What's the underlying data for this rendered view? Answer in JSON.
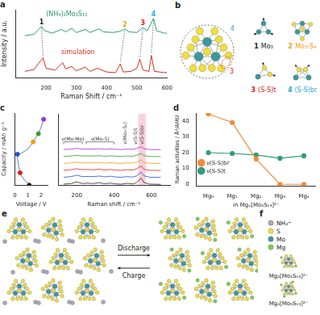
{
  "chart_data": [
    {
      "title": "a",
      "type": "line",
      "x_label": "Raman Shift / cm⁻¹",
      "y_label": "Intensity / a.u.",
      "xlim": [
        100,
        600
      ],
      "xticks": [
        200,
        300,
        400,
        500,
        600
      ],
      "ylim": [
        0,
        11
      ],
      "tick_labels": "x",
      "grid": false,
      "series": [
        {
          "name": "(NH₄)₂Mo₃S₁₃",
          "color": "#2a9d6f",
          "x": [
            130,
            160,
            185,
            195,
            220,
            250,
            265,
            285,
            300,
            330,
            345,
            375,
            390,
            420,
            445,
            460,
            475,
            500,
            520,
            535,
            555,
            565,
            590,
            600
          ],
          "values": [
            6.8,
            7.0,
            8.3,
            7.6,
            7.2,
            7.8,
            7.4,
            8.0,
            7.3,
            7.8,
            7.3,
            7.9,
            7.4,
            7.3,
            7.5,
            7.9,
            7.4,
            7.3,
            8.1,
            7.6,
            9.6,
            7.6,
            7.2,
            7.2
          ]
        },
        {
          "name": "simulation",
          "color": "#d62d20",
          "x": [
            130,
            160,
            180,
            190,
            200,
            230,
            255,
            265,
            285,
            300,
            330,
            345,
            370,
            400,
            430,
            445,
            455,
            480,
            500,
            510,
            520,
            540,
            548,
            558,
            590,
            600
          ],
          "values": [
            1.0,
            1.3,
            2.6,
            3.2,
            1.5,
            1.2,
            2.4,
            1.4,
            1.8,
            1.1,
            1.7,
            1.0,
            1.5,
            0.9,
            0.8,
            2.2,
            0.9,
            1.0,
            1.5,
            3.0,
            1.2,
            1.0,
            3.6,
            1.0,
            0.8,
            0.8
          ]
        }
      ],
      "peaks": [
        {
          "label": "1",
          "color": "#222222",
          "x_top": 185,
          "y_top": 8.3,
          "x_bottom": 190,
          "y_bottom": 3.2
        },
        {
          "label": "2",
          "color": "#f39c12",
          "x_top": 460,
          "y_top": 7.9,
          "x_bottom": 445,
          "y_bottom": 2.2
        },
        {
          "label": "3",
          "color": "#e0201b",
          "x_top": 520,
          "y_top": 8.1,
          "x_bottom": 510,
          "y_bottom": 3.0
        },
        {
          "label": "4",
          "color": "#29a8d8",
          "x_top": 555,
          "y_top": 9.6,
          "x_bottom": 548,
          "y_bottom": 3.6
        }
      ]
    },
    {
      "title": "c",
      "type": "scatter",
      "x_label": "Voltage / V",
      "y_label": "Capacity / mAh g⁻¹",
      "xlim": [
        0,
        2.5
      ],
      "xticks": [
        0,
        1,
        2
      ],
      "ylim": [
        0,
        700
      ],
      "yticks": [
        0,
        200,
        400,
        600
      ],
      "tick_labels": "x",
      "grid": false,
      "series": [
        {
          "type": "line",
          "color": "#5b7fbf",
          "x": [
            1.1,
            0.8,
            0.5,
            0.4,
            0.3,
            0.2,
            0.2,
            0.5,
            1.0,
            1.4,
            1.8,
            2.0,
            2.2
          ],
          "values": [
            0,
            40,
            90,
            120,
            180,
            260,
            300,
            310,
            350,
            420,
            500,
            560,
            640
          ]
        },
        {
          "type": "scatter",
          "marker": "circle",
          "colors": [
            "#222222",
            "#e0201b",
            "#1f4fd8",
            "#f39c12",
            "#2ca02c",
            "#9b30d9"
          ],
          "x": [
            1.1,
            0.4,
            0.2,
            1.4,
            1.8,
            2.2
          ],
          "values": [
            0,
            120,
            300,
            420,
            500,
            640
          ]
        }
      ]
    },
    {
      "type": "line",
      "x_label": "Raman shift / cm⁻¹",
      "xlim": [
        100,
        700
      ],
      "xticks": [
        200,
        400,
        600
      ],
      "ylim": [
        0,
        36
      ],
      "tick_labels": "x",
      "grid": false,
      "x": [
        130,
        170,
        200,
        230,
        260,
        290,
        320,
        350,
        380,
        410,
        440,
        470,
        500,
        520,
        545,
        560,
        590,
        650
      ],
      "series": [
        {
          "color": "#222222",
          "values": [
            0.5,
            0.8,
            1.6,
            0.8,
            1.0,
            0.8,
            1.2,
            0.7,
            1.0,
            0.6,
            0.5,
            0.9,
            0.6,
            1.2,
            3.6,
            1.3,
            0.5,
            0.4
          ]
        },
        {
          "color": "#1f4fd8",
          "values": [
            4.0,
            4.3,
            5.0,
            4.3,
            4.4,
            4.3,
            4.6,
            4.2,
            4.5,
            4.1,
            4.0,
            4.3,
            4.1,
            4.6,
            6.6,
            4.7,
            4.0,
            3.9
          ]
        },
        {
          "color": "#e0201b",
          "values": [
            7.5,
            7.8,
            8.3,
            7.8,
            7.9,
            7.7,
            8.1,
            7.6,
            7.9,
            7.6,
            7.5,
            7.8,
            7.6,
            8.2,
            9.7,
            8.0,
            7.5,
            7.4
          ]
        },
        {
          "color": "#f39c12",
          "values": [
            11.0,
            11.2,
            11.6,
            11.2,
            11.3,
            11.2,
            11.4,
            11.1,
            11.3,
            11.1,
            11.0,
            11.2,
            11.1,
            11.6,
            12.7,
            11.5,
            11.0,
            10.9
          ]
        },
        {
          "color": "#2ca02c",
          "values": [
            14.5,
            14.7,
            15.1,
            14.7,
            14.8,
            14.7,
            14.9,
            14.6,
            14.8,
            14.6,
            14.5,
            14.7,
            14.6,
            15.1,
            15.9,
            14.9,
            14.5,
            14.4
          ]
        },
        {
          "color": "#9b30d9",
          "values": [
            18.0,
            18.2,
            18.6,
            18.2,
            18.3,
            18.2,
            18.4,
            18.1,
            18.3,
            18.1,
            18.0,
            18.2,
            18.1,
            18.5,
            19.4,
            18.4,
            18.0,
            17.9
          ]
        }
      ],
      "bands": [
        {
          "label": "ν(Mo-Mo)",
          "x": [
            130,
            230
          ]
        },
        {
          "label": "ν(Mo-S)",
          "x": [
            250,
            400
          ]
        },
        {
          "label": "ν(Mo₃-S₄)",
          "x": 460
        },
        {
          "label": "ν(S-S)t",
          "x": 515
        },
        {
          "label": "ν(S-S)br",
          "x": 550
        }
      ],
      "highlight": [
        530,
        570
      ]
    },
    {
      "title": "d",
      "type": "line",
      "x_label": "in Mgₓ[Mo₃S₁₃]²⁻",
      "y_label": "Raman activities / Å⁴/AMU",
      "categories": [
        "Mg₀",
        "Mg₁",
        "Mg₂",
        "Mg₃",
        "Mg₄"
      ],
      "ylim": [
        -1,
        45
      ],
      "yticks": [
        0,
        10,
        20,
        30,
        40
      ],
      "legend": "top-right",
      "grid": false,
      "marker": "circle",
      "series": [
        {
          "name": "ν(S-S)br",
          "color": "#f28c38",
          "values": [
            44.5,
            39,
            16,
            0,
            0
          ]
        },
        {
          "name": "ν(S-S)t",
          "color": "#2e9e7e",
          "values": [
            20,
            19.5,
            18.5,
            16.5,
            18
          ]
        }
      ]
    }
  ],
  "diagrams": {
    "b": {
      "title": "b",
      "modes": [
        {
          "number": "1",
          "label": "Mo₃",
          "color": "#222222"
        },
        {
          "number": "2",
          "label": "Mo₃-S₄",
          "color": "#f39c12"
        },
        {
          "number": "3",
          "label": "(S-S)t",
          "color": "#e0201b"
        },
        {
          "number": "4",
          "label": "(S-S)br",
          "color": "#29a8d8"
        }
      ]
    },
    "e": {
      "title": "e",
      "forward": "Discharge",
      "backward": "Charge"
    },
    "f": {
      "title": "f",
      "species": [
        {
          "label": "NH₄⁺",
          "color": "#a9a9b8"
        },
        {
          "label": "S",
          "color": "#f2de3a"
        },
        {
          "label": "Mo",
          "color": "#3a9a9c"
        },
        {
          "label": "Mg",
          "color": "#7ccf5a"
        }
      ],
      "clusters": [
        {
          "label": "Mg₂[Mo₃S₁₃]²⁻",
          "mg": 2
        },
        {
          "label": "Mg₄[Mo₃S₁₃]²⁻",
          "mg": 4
        }
      ]
    }
  }
}
